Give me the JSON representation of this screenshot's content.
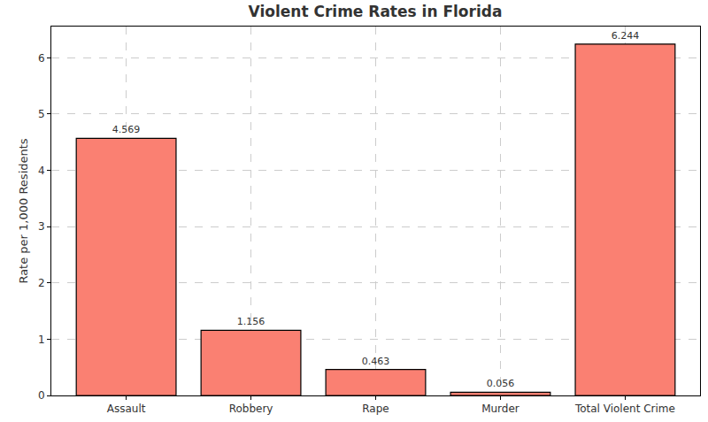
{
  "chart_data": {
    "type": "bar",
    "title": "Violent Crime Rates in Florida",
    "y_label": "Rate per 1,000 Residents",
    "categories": [
      "Assault",
      "Robbery",
      "Rape",
      "Murder",
      "Total Violent Crime"
    ],
    "values": [
      4.569,
      1.156,
      0.463,
      0.056,
      6.244
    ],
    "color": "#fa8072",
    "ylim": [
      0,
      6.556
    ],
    "yticks": [
      0,
      1,
      2,
      3,
      4,
      5,
      6
    ],
    "grid": true,
    "data_labels": true
  }
}
